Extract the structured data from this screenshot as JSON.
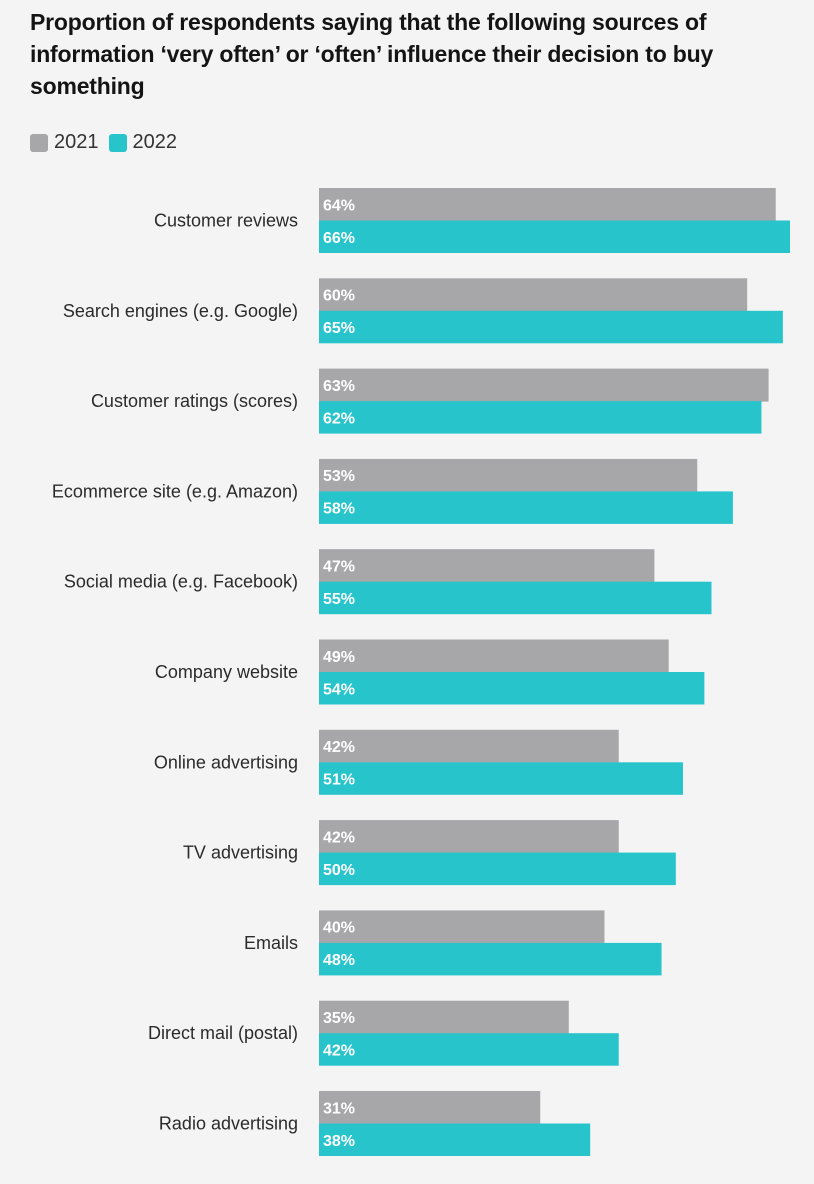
{
  "chart_data": {
    "type": "bar",
    "orientation": "horizontal",
    "title": "Proportion of respondents saying that the following sources of information ‘very often’ or ‘often’ influence their decision to buy something",
    "xlabel": "",
    "ylabel": "",
    "xlim": [
      0,
      66
    ],
    "grid": false,
    "legend_position": "top-left",
    "categories": [
      "Customer reviews",
      "Search engines (e.g. Google)",
      "Customer ratings (scores)",
      "Ecommerce site (e.g. Amazon)",
      "Social media (e.g. Facebook)",
      "Company website",
      "Online advertising",
      "TV advertising",
      "Emails",
      "Direct mail (postal)",
      "Radio advertising"
    ],
    "series": [
      {
        "name": "2021",
        "color": "#a7a7aa",
        "values": [
          64,
          60,
          63,
          53,
          47,
          49,
          42,
          42,
          40,
          35,
          31
        ]
      },
      {
        "name": "2022",
        "color": "#27c4cc",
        "values": [
          66,
          65,
          62,
          58,
          55,
          54,
          51,
          50,
          48,
          42,
          38
        ]
      }
    ],
    "value_suffix": "%"
  }
}
